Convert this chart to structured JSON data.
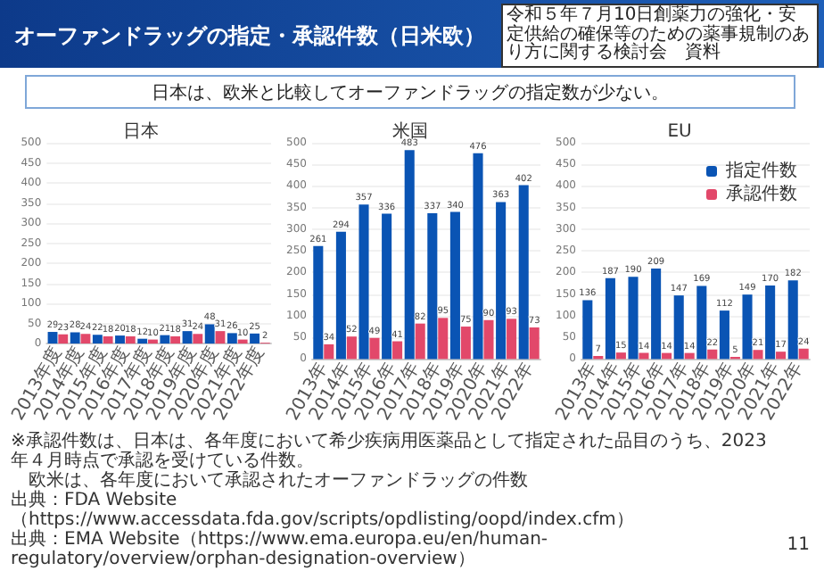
{
  "chart_data": [
    {
      "type": "other",
      "title": "オーファンドラッグの指定・承認件数（日米欧）",
      "subtitle": "日本は、欧米と比較してオーファンドラッグの指定数が少ない。",
      "annotations": [
        "令和５年７月10日創薬力の強化・安定供給の確保等のための薬事規制のあり方に関する検討会　資料",
        "※承認件数は、日本は、各年度において希少疾病用医薬品として指定された品目のうち、2023年４月時点で承認を受けている件数。",
        "　欧米は、各年度において承認されたオーファンドラッグの件数",
        "出典：FDA Website（https://www.accessdata.fda.gov/scripts/opdlisting/oopd/index.cfm）",
        "出典：EMA Website（https://www.ema.europa.eu/en/human-regulatory/overview/orphan-designation-overview）",
        "11"
      ]
    },
    {
      "type": "bar",
      "title": "日本",
      "categories": [
        "2013年度",
        "2014年度",
        "2015年度",
        "2016年度",
        "2017年度",
        "2018年度",
        "2019年度",
        "2020年度",
        "2021年度",
        "2022年度"
      ],
      "series": [
        {
          "color": "#0a54b4",
          "values": [
            29,
            28,
            22,
            20,
            12,
            21,
            31,
            48,
            26,
            25
          ]
        },
        {
          "color": "#e2486a",
          "values": [
            23,
            24,
            18,
            18,
            10,
            18,
            24,
            31,
            10,
            2
          ]
        }
      ],
      "ylim": [
        0,
        500
      ],
      "yticks": [
        0,
        50,
        100,
        150,
        200,
        250,
        300,
        350,
        400,
        450,
        500
      ],
      "grid": "y",
      "data_labels": true
    },
    {
      "type": "bar",
      "title": "米国",
      "categories": [
        "2013年",
        "2014年",
        "2015年",
        "2016年",
        "2017年",
        "2018年",
        "2019年",
        "2020年",
        "2021年",
        "2022年"
      ],
      "series": [
        {
          "color": "#0a54b4",
          "values": [
            261,
            294,
            357,
            336,
            483,
            337,
            340,
            476,
            363,
            402
          ]
        },
        {
          "color": "#e2486a",
          "values": [
            34,
            52,
            49,
            41,
            82,
            95,
            75,
            90,
            93,
            73
          ]
        }
      ],
      "ylim": [
        0,
        500
      ],
      "yticks": [
        0,
        50,
        100,
        150,
        200,
        250,
        300,
        350,
        400,
        450,
        500
      ],
      "grid": "y",
      "data_labels": true
    },
    {
      "type": "bar",
      "title": "EU",
      "categories": [
        "2013年",
        "2014年",
        "2015年",
        "2016年",
        "2017年",
        "2018年",
        "2019年",
        "2020年",
        "2021年",
        "2022年"
      ],
      "series": [
        {
          "name": "指定件数",
          "color": "#0a54b4",
          "values": [
            136,
            187,
            190,
            209,
            147,
            169,
            112,
            149,
            170,
            182
          ]
        },
        {
          "name": "承認件数",
          "color": "#e2486a",
          "values": [
            7,
            15,
            14,
            14,
            14,
            22,
            5,
            21,
            17,
            24
          ]
        }
      ],
      "ylim": [
        0,
        500
      ],
      "yticks": [
        0,
        50,
        100,
        150,
        200,
        250,
        300,
        350,
        400,
        450,
        500
      ],
      "grid": "y",
      "data_labels": true,
      "legend": "top right"
    }
  ]
}
